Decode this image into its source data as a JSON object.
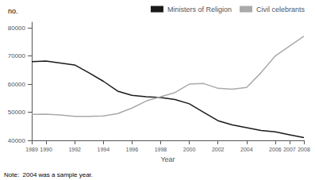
{
  "chart_data": {
    "type": "line",
    "title": "no.",
    "x_label": "Year",
    "x": [
      1989,
      1990,
      1991,
      1992,
      1993,
      1994,
      1995,
      1996,
      1997,
      1998,
      1999,
      2000,
      2001,
      2002,
      2003,
      2004,
      2005,
      2006,
      2007,
      2008
    ],
    "series": [
      {
        "name": "Ministers of Religion",
        "color": "#1a1a1a",
        "values": [
          68000,
          68200,
          67500,
          66800,
          64000,
          61000,
          57500,
          56000,
          55500,
          55200,
          54500,
          53000,
          50000,
          47000,
          45500,
          44500,
          43500,
          43000,
          42000,
          41000
        ]
      },
      {
        "name": "Civil celebrants",
        "color": "#aaaaaa",
        "values": [
          49200,
          49300,
          49000,
          48500,
          48500,
          48700,
          49500,
          51500,
          54000,
          55500,
          57000,
          60000,
          60200,
          58500,
          58200,
          58800,
          64000,
          70000,
          73500,
          77000
        ]
      }
    ],
    "xlim": [
      1989,
      2008
    ],
    "xticks": [
      1989,
      1990,
      1992,
      1994,
      1996,
      1998,
      2000,
      2002,
      2004,
      2006,
      2007,
      2008
    ],
    "ylim": [
      40000,
      82000
    ],
    "yticks": [
      40000,
      50000,
      60000,
      70000,
      80000
    ],
    "grid": false,
    "legend": "upper right",
    "annotations": [
      "Note:  2004 was a sample year."
    ]
  }
}
